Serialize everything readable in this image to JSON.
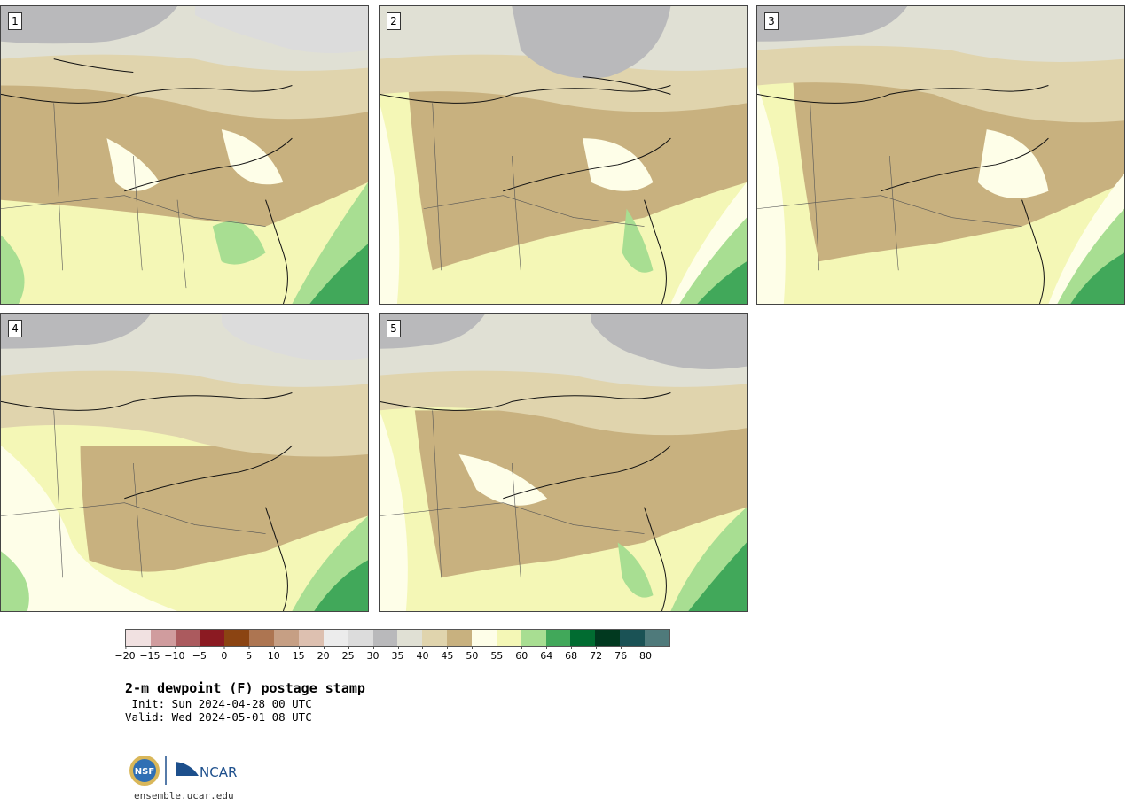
{
  "panels": [
    {
      "label": "1"
    },
    {
      "label": "2"
    },
    {
      "label": "3"
    },
    {
      "label": "4"
    },
    {
      "label": "5"
    }
  ],
  "colorbar": {
    "colors": [
      "#f1e1e1",
      "#d09c9e",
      "#ab5a5e",
      "#8b1a22",
      "#8b4412",
      "#ad7551",
      "#c69f84",
      "#ddc0b0",
      "#ececec",
      "#dcdcdc",
      "#b9b9bb",
      "#e0e0d4",
      "#e0d4ad",
      "#c8b17f",
      "#fefee8",
      "#f4f7b6",
      "#a8de92",
      "#41a85a",
      "#016c31",
      "#01391f",
      "#1a5255",
      "#4f7a7b"
    ],
    "ticks": [
      "−20",
      "−15",
      "−10",
      "−5",
      "0",
      "5",
      "10",
      "15",
      "20",
      "25",
      "30",
      "35",
      "40",
      "45",
      "50",
      "55",
      "60",
      "64",
      "68",
      "72",
      "76",
      "80"
    ]
  },
  "title": "2-m dewpoint (F) postage stamp",
  "init": " Init: Sun 2024-04-28 00 UTC",
  "valid": "Valid: Wed 2024-05-01 08 UTC",
  "logo": {
    "nsf": "NSF",
    "ncar": "NCAR"
  },
  "url": "ensemble.ucar.edu"
}
